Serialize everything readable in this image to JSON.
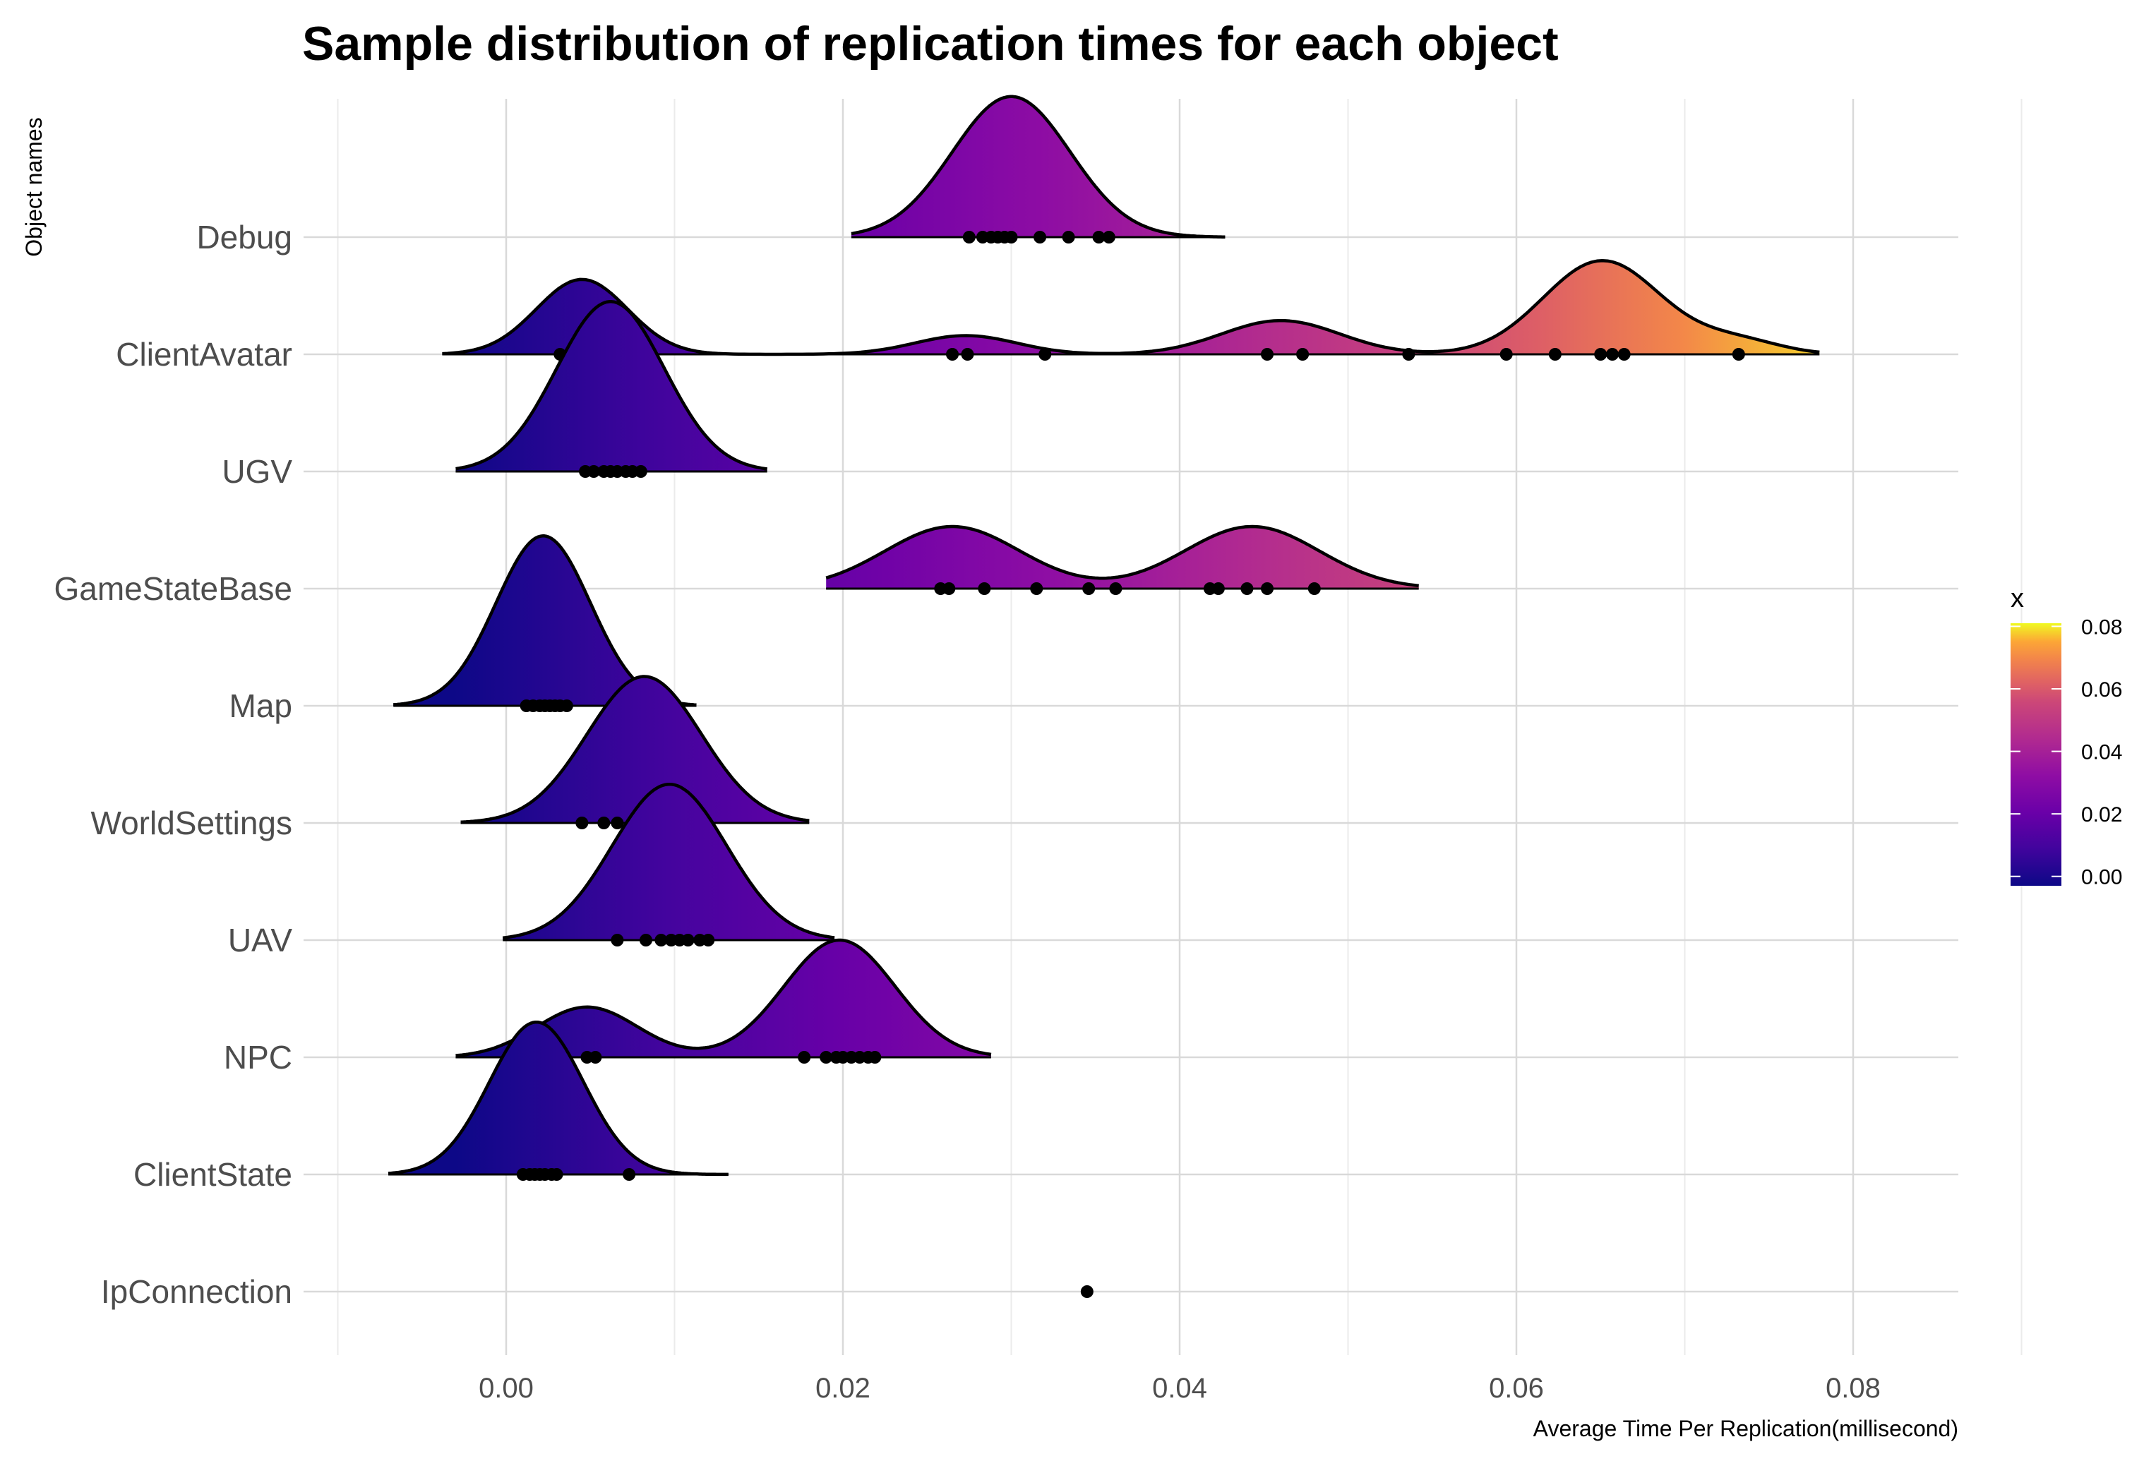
{
  "chart_data": {
    "type": "ridgeline",
    "title": "Sample distribution of replication times for each object",
    "xlabel": "Average Time Per Replication(millisecond)",
    "ylabel": "Object names",
    "xlim": [
      -0.01,
      0.086
    ],
    "x_ticks": [
      "0.00",
      "0.02",
      "0.04",
      "0.06",
      "0.08"
    ],
    "x_tick_values": [
      0.0,
      0.02,
      0.04,
      0.06,
      0.08
    ],
    "legend": {
      "title": "x",
      "placement": "right",
      "colormap": "plasma",
      "range": [
        -0.003,
        0.081
      ],
      "tick_labels": [
        "0.00",
        "0.02",
        "0.04",
        "0.06",
        "0.08"
      ],
      "tick_values": [
        0.0,
        0.02,
        0.04,
        0.06,
        0.08
      ]
    },
    "grid": true,
    "series": [
      {
        "name": "Debug",
        "points": [
          0.0275,
          0.0283,
          0.0288,
          0.0292,
          0.0296,
          0.03,
          0.0317,
          0.0334,
          0.0352,
          0.0358
        ],
        "components": [
          {
            "mu": 0.03,
            "sd": 0.0035,
            "w": 1.0
          }
        ],
        "range": [
          0.0205,
          0.0427
        ],
        "height": 1.2
      },
      {
        "name": "ClientAvatar",
        "points": [
          0.0032,
          0.0265,
          0.0274,
          0.032,
          0.0452,
          0.0473,
          0.0536,
          0.0594,
          0.0623,
          0.065,
          0.0657,
          0.0664,
          0.0732
        ],
        "components": [
          {
            "mu": 0.0045,
            "sd": 0.0027,
            "w": 0.2
          },
          {
            "mu": 0.0273,
            "sd": 0.003,
            "w": 0.05
          },
          {
            "mu": 0.046,
            "sd": 0.0035,
            "w": 0.09
          },
          {
            "mu": 0.0651,
            "sd": 0.0035,
            "w": 0.25
          },
          {
            "mu": 0.0732,
            "sd": 0.0025,
            "w": 0.035
          }
        ],
        "range": [
          -0.0038,
          0.078
        ],
        "height": 0.8
      },
      {
        "name": "UGV",
        "points": [
          0.0047,
          0.0052,
          0.0058,
          0.0062,
          0.0066,
          0.0071,
          0.0075,
          0.008
        ],
        "components": [
          {
            "mu": 0.0062,
            "sd": 0.0032,
            "w": 1.0
          }
        ],
        "range": [
          -0.003,
          0.0155
        ],
        "height": 1.45
      },
      {
        "name": "GameStateBase",
        "points": [
          0.0258,
          0.0263,
          0.0284,
          0.0315,
          0.0346,
          0.0362,
          0.0418,
          0.0423,
          0.044,
          0.0452,
          0.048
        ],
        "components": [
          {
            "mu": 0.0265,
            "sd": 0.004,
            "w": 0.5
          },
          {
            "mu": 0.0443,
            "sd": 0.004,
            "w": 0.5
          }
        ],
        "range": [
          0.019,
          0.0542
        ],
        "height": 0.53
      },
      {
        "name": "Map",
        "points": [
          0.0012,
          0.0016,
          0.002,
          0.0023,
          0.0026,
          0.0029,
          0.0032,
          0.0036
        ],
        "components": [
          {
            "mu": 0.0022,
            "sd": 0.0028,
            "w": 1.0
          }
        ],
        "range": [
          -0.0067,
          0.0113
        ],
        "height": 1.45
      },
      {
        "name": "WorldSettings",
        "points": [
          0.0045,
          0.0058,
          0.0066,
          0.0075,
          0.0083,
          0.009,
          0.0096
        ],
        "components": [
          {
            "mu": 0.0082,
            "sd": 0.0034,
            "w": 1.0
          }
        ],
        "range": [
          -0.0027,
          0.018
        ],
        "height": 1.25
      },
      {
        "name": "UAV",
        "points": [
          0.0066,
          0.0083,
          0.0092,
          0.0098,
          0.0103,
          0.0108,
          0.0115,
          0.012
        ],
        "components": [
          {
            "mu": 0.0097,
            "sd": 0.0034,
            "w": 1.0
          }
        ],
        "range": [
          -0.0002,
          0.0195
        ],
        "height": 1.33
      },
      {
        "name": "NPC",
        "points": [
          0.0048,
          0.0053,
          0.0177,
          0.019,
          0.0196,
          0.02,
          0.0205,
          0.021,
          0.0215,
          0.0219
        ],
        "components": [
          {
            "mu": 0.0048,
            "sd": 0.003,
            "w": 0.3
          },
          {
            "mu": 0.0198,
            "sd": 0.0033,
            "w": 0.7
          }
        ],
        "range": [
          -0.003,
          0.0288
        ],
        "height": 1.0
      },
      {
        "name": "ClientState",
        "points": [
          0.001,
          0.0014,
          0.0017,
          0.002,
          0.0023,
          0.0027,
          0.003,
          0.0073
        ],
        "components": [
          {
            "mu": 0.0018,
            "sd": 0.0028,
            "w": 1.0
          }
        ],
        "range": [
          -0.007,
          0.0132
        ],
        "height": 1.3
      },
      {
        "name": "IpConnection",
        "points": [
          0.0345
        ],
        "components": [],
        "range": [
          0.0345,
          0.0345
        ],
        "height": 0
      }
    ]
  }
}
